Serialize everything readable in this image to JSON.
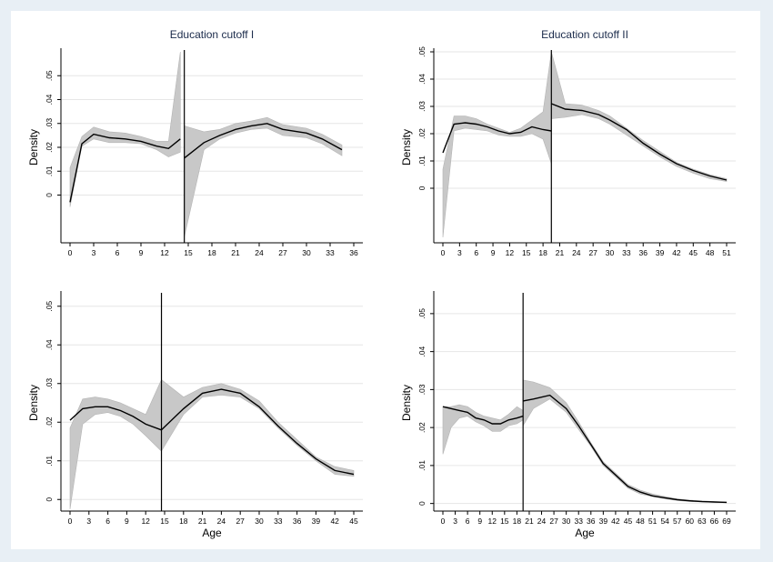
{
  "chart_data": [
    {
      "type": "line",
      "title": "Education cutoff I",
      "ylabel": "Density",
      "xlabel": "",
      "cutoff": 14.5,
      "xticks": [
        0,
        3,
        6,
        9,
        12,
        15,
        18,
        21,
        24,
        27,
        30,
        33,
        36
      ],
      "yticks": [
        0,
        0.01,
        0.02,
        0.03,
        0.04,
        0.05
      ],
      "ytick_labels": [
        "0",
        ".01",
        ".02",
        ".03",
        ".04",
        ".05"
      ],
      "xlim": [
        0,
        36
      ],
      "ylim": [
        -0.02,
        0.06
      ],
      "grid": true,
      "segments": [
        {
          "x": [
            0,
            1.5,
            3,
            5,
            7,
            9,
            11,
            12.5,
            14
          ],
          "y": [
            -0.003,
            0.0215,
            0.0255,
            0.024,
            0.0235,
            0.0225,
            0.0205,
            0.0195,
            0.0235
          ],
          "lo": [
            -0.005,
            0.0205,
            0.0235,
            0.022,
            0.022,
            0.0215,
            0.019,
            0.016,
            0.018
          ],
          "hi": [
            0.0115,
            0.0245,
            0.0285,
            0.0265,
            0.026,
            0.0245,
            0.0225,
            0.0225,
            0.06
          ]
        },
        {
          "x": [
            14.5,
            17,
            19,
            21,
            23,
            25,
            27,
            30,
            32,
            34.5
          ],
          "y": [
            0.0155,
            0.022,
            0.025,
            0.0275,
            0.029,
            0.03,
            0.0275,
            0.026,
            0.0235,
            0.019
          ],
          "lo": [
            -0.0175,
            0.019,
            0.0235,
            0.026,
            0.0275,
            0.028,
            0.025,
            0.024,
            0.0215,
            0.0165
          ],
          "hi": [
            0.029,
            0.0265,
            0.0275,
            0.03,
            0.031,
            0.0325,
            0.0295,
            0.028,
            0.0255,
            0.021
          ]
        }
      ]
    },
    {
      "type": "line",
      "title": "Education cutoff II",
      "ylabel": "Density",
      "xlabel": "",
      "cutoff": 19.5,
      "xticks": [
        0,
        3,
        6,
        9,
        12,
        15,
        18,
        21,
        24,
        27,
        30,
        33,
        36,
        39,
        42,
        45,
        48,
        51
      ],
      "yticks": [
        0,
        0.01,
        0.02,
        0.03,
        0.04,
        0.05
      ],
      "ytick_labels": [
        "0",
        ".01",
        ".02",
        ".03",
        ".04",
        ".05"
      ],
      "xlim": [
        0,
        51
      ],
      "ylim": [
        -0.02,
        0.05
      ],
      "grid": true,
      "segments": [
        {
          "x": [
            0,
            2,
            4,
            6,
            8,
            10,
            12,
            14,
            16,
            18,
            19.5
          ],
          "y": [
            0.013,
            0.0235,
            0.024,
            0.0235,
            0.0225,
            0.021,
            0.02,
            0.0205,
            0.0225,
            0.0215,
            0.021
          ],
          "lo": [
            -0.018,
            0.021,
            0.022,
            0.0215,
            0.021,
            0.0195,
            0.019,
            0.019,
            0.02,
            0.018,
            0.009
          ],
          "hi": [
            0.007,
            0.0265,
            0.0265,
            0.0255,
            0.0235,
            0.022,
            0.0205,
            0.022,
            0.025,
            0.028,
            0.05
          ]
        },
        {
          "x": [
            19.5,
            22,
            25,
            28,
            30,
            33,
            36,
            39,
            42,
            45,
            48,
            51
          ],
          "y": [
            0.031,
            0.029,
            0.0285,
            0.027,
            0.025,
            0.0215,
            0.0165,
            0.0125,
            0.009,
            0.0065,
            0.0045,
            0.003
          ],
          "lo": [
            0.0255,
            0.026,
            0.027,
            0.0255,
            0.0235,
            0.0195,
            0.0155,
            0.0115,
            0.008,
            0.0055,
            0.0035,
            0.0025
          ],
          "hi": [
            0.05,
            0.031,
            0.0305,
            0.0285,
            0.0265,
            0.022,
            0.0175,
            0.0135,
            0.0095,
            0.007,
            0.005,
            0.0035
          ]
        }
      ]
    },
    {
      "type": "line",
      "title": "",
      "ylabel": "Density",
      "xlabel": "Age",
      "cutoff": 14.5,
      "xticks": [
        0,
        3,
        6,
        9,
        12,
        15,
        18,
        21,
        24,
        27,
        30,
        33,
        36,
        39,
        42,
        45
      ],
      "yticks": [
        0,
        0.01,
        0.02,
        0.03,
        0.04,
        0.05
      ],
      "ytick_labels": [
        "0",
        ".01",
        ".02",
        ".03",
        ".04",
        ".05"
      ],
      "xlim": [
        0,
        45
      ],
      "ylim": [
        -0.003,
        0.053
      ],
      "grid": true,
      "segments": [
        {
          "x": [
            0,
            2,
            4,
            6,
            8,
            10,
            12,
            14.5
          ],
          "y": [
            0.0205,
            0.0235,
            0.024,
            0.024,
            0.023,
            0.0215,
            0.0195,
            0.018
          ],
          "lo": [
            -0.0025,
            0.0195,
            0.022,
            0.0225,
            0.0215,
            0.0195,
            0.0165,
            0.0125
          ],
          "hi": [
            0.0185,
            0.026,
            0.0265,
            0.026,
            0.025,
            0.0235,
            0.022,
            0.031
          ]
        },
        {
          "x": [
            14.5,
            18,
            21,
            24,
            27,
            30,
            33,
            36,
            39,
            42,
            45
          ],
          "y": [
            0.018,
            0.0235,
            0.0275,
            0.0285,
            0.0275,
            0.024,
            0.019,
            0.0145,
            0.0105,
            0.0075,
            0.0065
          ],
          "lo": [
            0.0125,
            0.022,
            0.0265,
            0.027,
            0.0265,
            0.0235,
            0.0185,
            0.014,
            0.01,
            0.0065,
            0.006
          ],
          "hi": [
            0.031,
            0.0265,
            0.029,
            0.03,
            0.0285,
            0.0255,
            0.02,
            0.0155,
            0.011,
            0.0085,
            0.0075
          ]
        }
      ]
    },
    {
      "type": "line",
      "title": "",
      "ylabel": "Density",
      "xlabel": "Age",
      "cutoff": 19.5,
      "xticks": [
        0,
        3,
        6,
        9,
        12,
        15,
        18,
        21,
        24,
        27,
        30,
        33,
        36,
        39,
        42,
        45,
        48,
        51,
        54,
        57,
        60,
        63,
        66,
        69
      ],
      "yticks": [
        0,
        0.01,
        0.02,
        0.03,
        0.04,
        0.05
      ],
      "ytick_labels": [
        "0",
        ".01",
        ".02",
        ".03",
        ".04",
        ".05"
      ],
      "xlim": [
        0,
        69
      ],
      "ylim": [
        -0.002,
        0.055
      ],
      "grid": true,
      "segments": [
        {
          "x": [
            0,
            2,
            4,
            6,
            8,
            10,
            12,
            14,
            16,
            18,
            19.5
          ],
          "y": [
            0.0255,
            0.025,
            0.0245,
            0.024,
            0.0225,
            0.022,
            0.021,
            0.021,
            0.022,
            0.0225,
            0.023
          ],
          "lo": [
            0.013,
            0.02,
            0.0225,
            0.023,
            0.0215,
            0.0205,
            0.019,
            0.019,
            0.0205,
            0.021,
            0.022
          ],
          "hi": [
            0.0255,
            0.0255,
            0.026,
            0.0255,
            0.024,
            0.023,
            0.0225,
            0.022,
            0.0235,
            0.0255,
            0.0245
          ]
        },
        {
          "x": [
            19.5,
            22,
            26,
            30,
            33,
            36,
            39,
            42,
            45,
            48,
            51,
            54,
            57,
            60,
            63,
            66,
            69
          ],
          "y": [
            0.027,
            0.0275,
            0.0285,
            0.025,
            0.0205,
            0.0155,
            0.0105,
            0.0075,
            0.0045,
            0.003,
            0.002,
            0.0015,
            0.001,
            0.0007,
            0.0005,
            0.0004,
            0.0003
          ],
          "lo": [
            0.0205,
            0.025,
            0.0275,
            0.024,
            0.0195,
            0.015,
            0.01,
            0.007,
            0.004,
            0.0025,
            0.0018,
            0.0012,
            0.0008,
            0.0005,
            0.0004,
            0.0003,
            0.0002
          ],
          "hi": [
            0.0325,
            0.032,
            0.0305,
            0.0265,
            0.0215,
            0.016,
            0.011,
            0.008,
            0.005,
            0.0035,
            0.0025,
            0.0018,
            0.0012,
            0.0009,
            0.0007,
            0.0005,
            0.0004
          ]
        }
      ]
    }
  ]
}
